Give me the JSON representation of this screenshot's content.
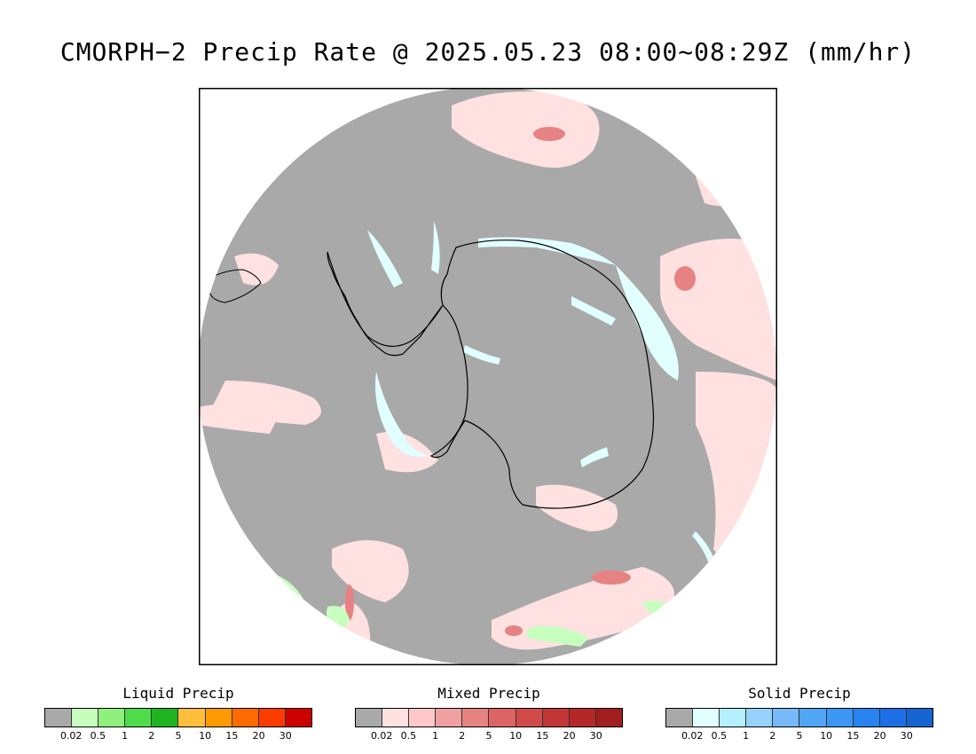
{
  "title": "CMORPH−2 Precip Rate @ 2025.05.23 08:00~08:29Z (mm/hr)",
  "map": {
    "projection": "south-polar-stereographic",
    "background_color": "#a9a9a9",
    "coastline_color": "#000000"
  },
  "legends": [
    {
      "title": "Liquid Precip",
      "colors": [
        "#a9a9a9",
        "#c7ffbe",
        "#8ff07d",
        "#4edc4b",
        "#1fb41f",
        "#ffbe3c",
        "#ff9b00",
        "#ff6b00",
        "#ff3c00",
        "#cd0000"
      ],
      "ticks": [
        "0.02",
        "0.5",
        "1",
        "2",
        "5",
        "10",
        "15",
        "20",
        "30"
      ]
    },
    {
      "title": "Mixed Precip",
      "colors": [
        "#a9a9a9",
        "#ffe1e1",
        "#ffc8c8",
        "#f0a0a0",
        "#e68282",
        "#dc6464",
        "#d24b4b",
        "#c33737",
        "#b42828",
        "#a01e1e"
      ],
      "ticks": [
        "0.02",
        "0.5",
        "1",
        "2",
        "5",
        "10",
        "15",
        "20",
        "30"
      ]
    },
    {
      "title": "Solid Precip",
      "colors": [
        "#a9a9a9",
        "#e1ffff",
        "#b4f0ff",
        "#96d2fa",
        "#78b9fa",
        "#50a5f5",
        "#3c96f5",
        "#2882f0",
        "#1e6ee6",
        "#1464d2"
      ],
      "ticks": [
        "0.02",
        "0.5",
        "1",
        "2",
        "5",
        "10",
        "15",
        "20",
        "30"
      ]
    }
  ]
}
